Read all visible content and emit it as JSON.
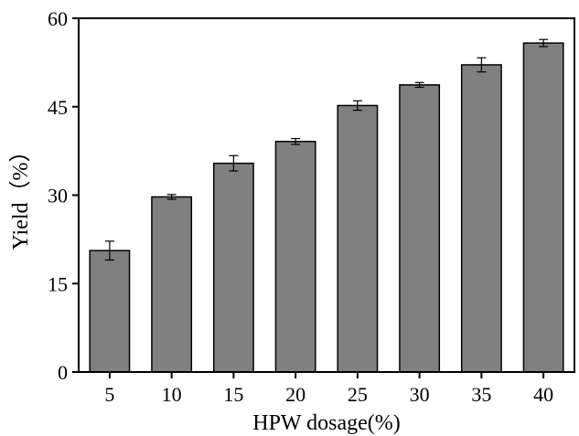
{
  "chart_data": {
    "type": "bar",
    "title": "",
    "xlabel": "HPW dosage(%)",
    "ylabel": "Yield（%）",
    "categories": [
      "5",
      "10",
      "15",
      "20",
      "25",
      "30",
      "35",
      "40"
    ],
    "values": [
      20.6,
      29.7,
      35.4,
      39.1,
      45.2,
      48.7,
      52.1,
      55.8
    ],
    "errors": [
      1.6,
      0.4,
      1.3,
      0.5,
      0.8,
      0.4,
      1.2,
      0.6
    ],
    "ylim": [
      0,
      60
    ],
    "yticks": [
      0,
      15,
      30,
      45,
      60
    ],
    "colors": {
      "bar_fill": "#808080",
      "bar_stroke": "#000000",
      "axis": "#000000"
    },
    "grid": false
  }
}
